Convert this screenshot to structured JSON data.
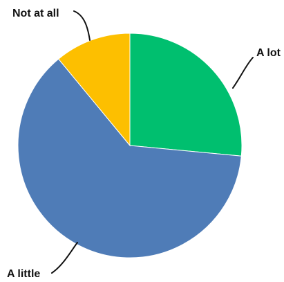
{
  "chart_data": {
    "type": "pie",
    "slices": [
      {
        "label": "A lot",
        "value": 26.5,
        "color": "#00BF6F"
      },
      {
        "label": "A little",
        "value": 62.5,
        "color": "#4F7CB7"
      },
      {
        "label": "Not at all",
        "value": 11.0,
        "color": "#FDBF00"
      }
    ],
    "legend": "none"
  }
}
